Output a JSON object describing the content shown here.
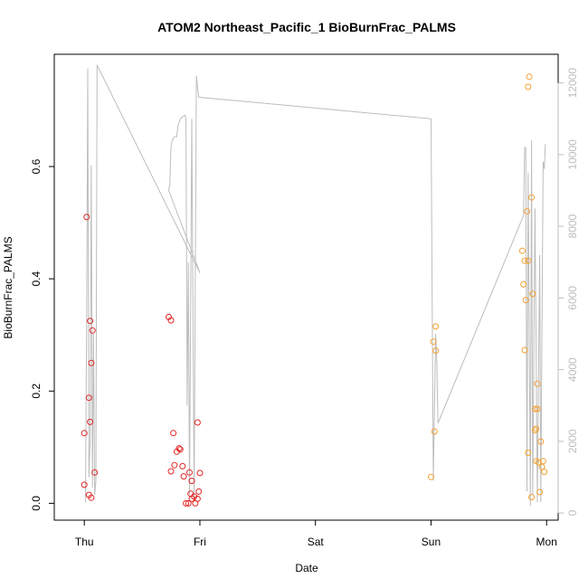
{
  "chart_data": {
    "type": "scatter",
    "title": "ATOM2 Northeast_Pacific_1 BioBurnFrac_PALMS",
    "xlabel": "Date",
    "ylabel": "BioBurnFrac_PALMS",
    "x_ticks": [
      {
        "pos": 0,
        "label": "Thu"
      },
      {
        "pos": 1,
        "label": "Fri"
      },
      {
        "pos": 2,
        "label": "Sat"
      },
      {
        "pos": 3,
        "label": "Sun"
      },
      {
        "pos": 4,
        "label": "Mon"
      }
    ],
    "xlim": [
      -0.26,
      4.1
    ],
    "ylim": [
      -0.03,
      0.8
    ],
    "y_ticks": [
      0.0,
      0.2,
      0.4,
      0.6
    ],
    "y_tick_labels": [
      "0.0",
      "0.2",
      "0.4",
      "0.6"
    ],
    "y2lim": [
      -200,
      12800
    ],
    "y2_ticks": [
      0,
      2000,
      4000,
      6000,
      8000,
      10000,
      12000
    ],
    "y2_tick_labels": [
      "0",
      "2000",
      "4000",
      "6000",
      "8000",
      "10000",
      "12000"
    ],
    "grid": false,
    "colors": {
      "series_red": "#e32626",
      "series_orange": "#f3a033",
      "altitude_line": "#bdbdbd",
      "axis": "#000000"
    },
    "series": [
      {
        "color_key": "series_red",
        "points": [
          [
            0.02,
            0.51
          ],
          [
            0.05,
            0.325
          ],
          [
            0.07,
            0.308
          ],
          [
            0.06,
            0.25
          ],
          [
            0.04,
            0.188
          ],
          [
            0.05,
            0.145
          ],
          [
            0.0,
            0.125
          ],
          [
            0.09,
            0.055
          ],
          [
            0.0,
            0.033
          ],
          [
            0.04,
            0.015
          ],
          [
            0.06,
            0.01
          ],
          [
            0.73,
            0.332
          ],
          [
            0.75,
            0.326
          ],
          [
            0.77,
            0.125
          ],
          [
            0.82,
            0.098
          ],
          [
            0.83,
            0.096
          ],
          [
            0.8,
            0.092
          ],
          [
            0.78,
            0.068
          ],
          [
            0.85,
            0.066
          ],
          [
            0.75,
            0.057
          ],
          [
            0.91,
            0.055
          ],
          [
            1.0,
            0.054
          ],
          [
            0.86,
            0.048
          ],
          [
            0.93,
            0.04
          ],
          [
            0.99,
            0.021
          ],
          [
            0.92,
            0.017
          ],
          [
            0.95,
            0.012
          ],
          [
            0.93,
            0.008
          ],
          [
            0.98,
            0.008
          ],
          [
            0.88,
            0.0
          ],
          [
            0.9,
            0.0
          ],
          [
            0.96,
            0.0
          ],
          [
            0.98,
            0.144
          ]
        ]
      },
      {
        "color_key": "series_orange",
        "points": [
          [
            3.02,
            0.288
          ],
          [
            3.04,
            0.315
          ],
          [
            3.04,
            0.272
          ],
          [
            3.03,
            0.128
          ],
          [
            3.0,
            0.047
          ],
          [
            3.85,
            0.76
          ],
          [
            3.84,
            0.742
          ],
          [
            3.87,
            0.545
          ],
          [
            3.83,
            0.52
          ],
          [
            3.79,
            0.45
          ],
          [
            3.81,
            0.432
          ],
          [
            3.84,
            0.432
          ],
          [
            3.8,
            0.39
          ],
          [
            3.88,
            0.373
          ],
          [
            3.82,
            0.362
          ],
          [
            3.81,
            0.273
          ],
          [
            3.92,
            0.213
          ],
          [
            3.9,
            0.168
          ],
          [
            3.92,
            0.168
          ],
          [
            3.9,
            0.13
          ],
          [
            3.91,
            0.133
          ],
          [
            3.95,
            0.11
          ],
          [
            3.84,
            0.09
          ],
          [
            3.91,
            0.075
          ],
          [
            3.93,
            0.073
          ],
          [
            3.97,
            0.075
          ],
          [
            3.96,
            0.065
          ],
          [
            3.98,
            0.056
          ],
          [
            3.94,
            0.02
          ],
          [
            3.87,
            0.011
          ]
        ]
      }
    ],
    "secondary_line": {
      "y_axis": "right",
      "points": [
        [
          0.01,
          300
        ],
        [
          0.02,
          5500
        ],
        [
          0.03,
          12400
        ],
        [
          0.04,
          1000
        ],
        [
          0.05,
          2000
        ],
        [
          0.06,
          9700
        ],
        [
          0.07,
          700
        ],
        [
          0.08,
          5000
        ],
        [
          0.09,
          500
        ],
        [
          0.1,
          900
        ],
        [
          0.11,
          12500
        ],
        [
          1.0,
          6700
        ],
        [
          0.73,
          9000
        ],
        [
          0.74,
          9200
        ],
        [
          0.75,
          10200
        ],
        [
          0.76,
          10400
        ],
        [
          0.78,
          10500
        ],
        [
          0.8,
          10500
        ],
        [
          0.81,
          10800
        ],
        [
          0.83,
          11000
        ],
        [
          0.87,
          11100
        ],
        [
          0.88,
          11000
        ],
        [
          0.89,
          3000
        ],
        [
          0.9,
          7000
        ],
        [
          0.91,
          500
        ],
        [
          0.93,
          11000
        ],
        [
          0.95,
          400
        ],
        [
          0.97,
          12200
        ],
        [
          0.99,
          11600
        ],
        [
          3.0,
          11000
        ],
        [
          3.02,
          900
        ],
        [
          3.04,
          5000
        ],
        [
          3.05,
          4200
        ],
        [
          3.06,
          2500
        ],
        [
          3.8,
          8300
        ],
        [
          3.81,
          10200
        ],
        [
          3.82,
          10200
        ],
        [
          3.83,
          600
        ],
        [
          3.84,
          9500
        ],
        [
          3.86,
          200
        ],
        [
          3.87,
          10400
        ],
        [
          3.88,
          500
        ],
        [
          3.9,
          8500
        ],
        [
          3.92,
          300
        ],
        [
          3.94,
          7200
        ],
        [
          3.95,
          300
        ],
        [
          3.97,
          9800
        ],
        [
          3.98,
          9600
        ],
        [
          3.99,
          10300
        ]
      ]
    }
  }
}
